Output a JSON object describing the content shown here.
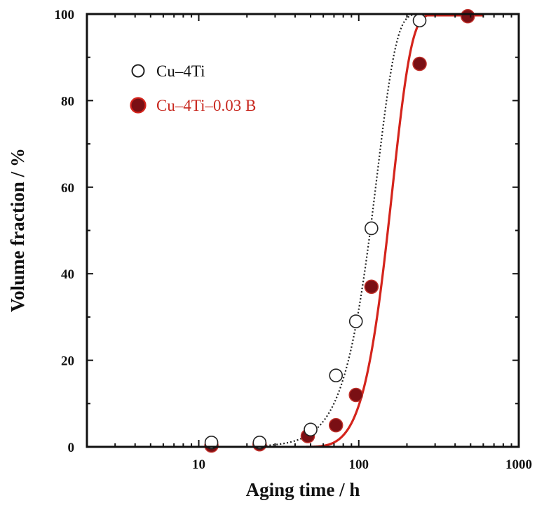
{
  "chart_data": {
    "type": "scatter",
    "title": "",
    "xlabel": "Aging time / h",
    "ylabel": "Volume fraction / %",
    "xscale": "log",
    "xlim": [
      2,
      1000
    ],
    "ylim": [
      0,
      100
    ],
    "x_ticks": [
      10,
      100,
      1000
    ],
    "x_tick_labels": [
      "10",
      "100",
      "1000"
    ],
    "y_ticks": [
      0,
      20,
      40,
      60,
      80,
      100
    ],
    "y_tick_labels": [
      "0",
      "20",
      "40",
      "60",
      "80",
      "100"
    ],
    "grid": false,
    "legend_position": "top-left",
    "series": [
      {
        "name": "Cu–4Ti",
        "marker": "open-circle",
        "marker_color": "#222222",
        "line_style": "dotted",
        "line_color": "#222222",
        "legend_text_color": "#111111",
        "points": [
          {
            "x": 12,
            "y": 1
          },
          {
            "x": 24,
            "y": 1
          },
          {
            "x": 50,
            "y": 4
          },
          {
            "x": 72,
            "y": 16.5
          },
          {
            "x": 96,
            "y": 29
          },
          {
            "x": 120,
            "y": 50.5
          },
          {
            "x": 240,
            "y": 98.5
          }
        ],
        "fit": {
          "t_half": 118,
          "n": 3.6
        }
      },
      {
        "name": "Cu–4Ti–0.03 B",
        "marker": "filled-circle",
        "marker_color": "#7a0f14",
        "marker_edge_color": "#c0302a",
        "line_style": "solid",
        "line_color": "#d4241c",
        "legend_text_color": "#c8281f",
        "points": [
          {
            "x": 12,
            "y": 0.3
          },
          {
            "x": 24,
            "y": 0.6
          },
          {
            "x": 48,
            "y": 2.5
          },
          {
            "x": 72,
            "y": 5
          },
          {
            "x": 96,
            "y": 12
          },
          {
            "x": 120,
            "y": 37
          },
          {
            "x": 240,
            "y": 88.5
          },
          {
            "x": 480,
            "y": 99.5
          }
        ],
        "fit": {
          "t0": 45,
          "t_half": 152,
          "n": 2.9
        }
      }
    ]
  }
}
